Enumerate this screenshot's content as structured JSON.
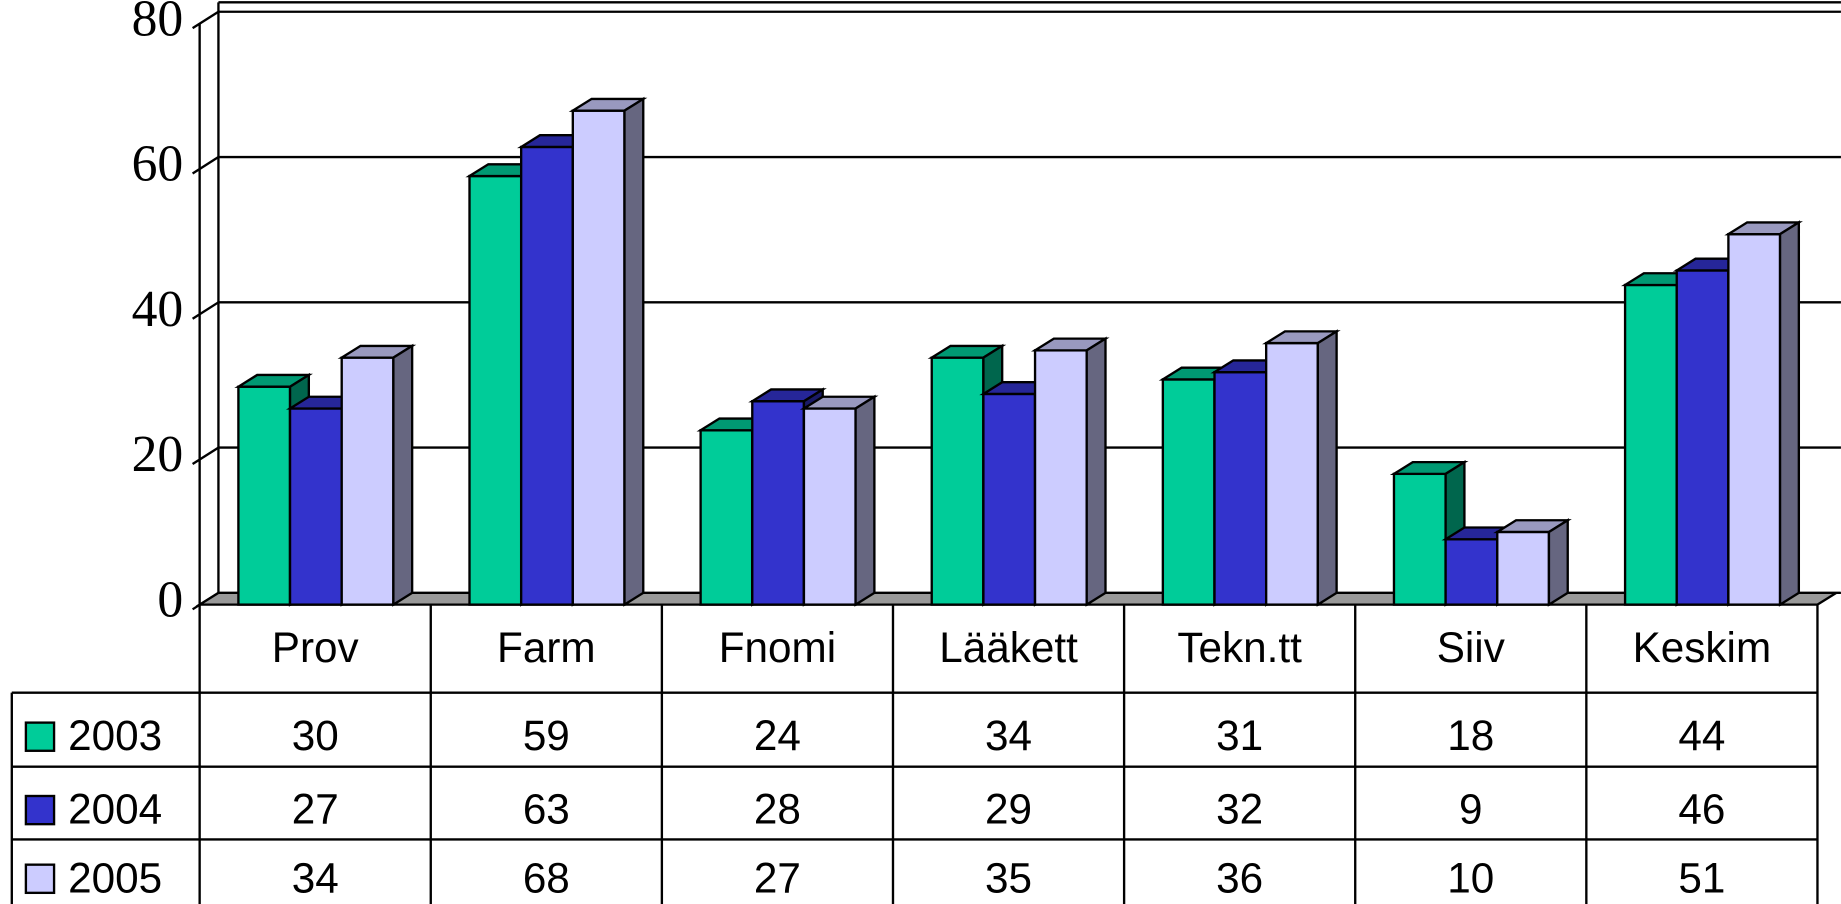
{
  "chart_data": {
    "type": "bar3d",
    "categories": [
      "Prov",
      "Farm",
      "Fnomi",
      "Lääkett",
      "Tekn.tt",
      "Siiv",
      "Keskim"
    ],
    "series": [
      {
        "name": "2003",
        "color": "#00cc99",
        "values": [
          30,
          59,
          24,
          34,
          31,
          18,
          44
        ]
      },
      {
        "name": "2004",
        "color": "#3333cc",
        "values": [
          27,
          63,
          28,
          29,
          32,
          9,
          46
        ]
      },
      {
        "name": "2005",
        "color": "#ccccff",
        "values": [
          34,
          68,
          27,
          35,
          36,
          10,
          51
        ]
      }
    ],
    "ylim": [
      0,
      80
    ],
    "yticks": [
      0,
      20,
      40,
      60,
      80
    ],
    "grid": true
  }
}
